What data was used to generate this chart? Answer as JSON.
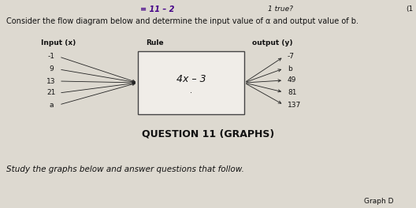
{
  "title_text": "Consider the flow diagram below and determine the input value of α and output value of b.",
  "header_input": "Input (x)",
  "header_rule": "Rule",
  "header_output": "output (y)",
  "rule_text": "4x – 3",
  "inputs": [
    "-1",
    "9",
    "13",
    "21",
    "a"
  ],
  "outputs": [
    "-7",
    "b",
    "49",
    "81",
    "137"
  ],
  "question_label": "QUESTION 11 (GRAPHS)",
  "bottom_text": "Study the graphs below and answer questions that follow.",
  "graph_label": "Graph D",
  "bg_color": "#ddd9d0",
  "box_color": "#f0ede8",
  "text_color": "#111111",
  "arrow_color": "#222222",
  "top_left_note": "= 11 – 2",
  "top_mid_note": "1 true?",
  "top_right_note": "(1"
}
